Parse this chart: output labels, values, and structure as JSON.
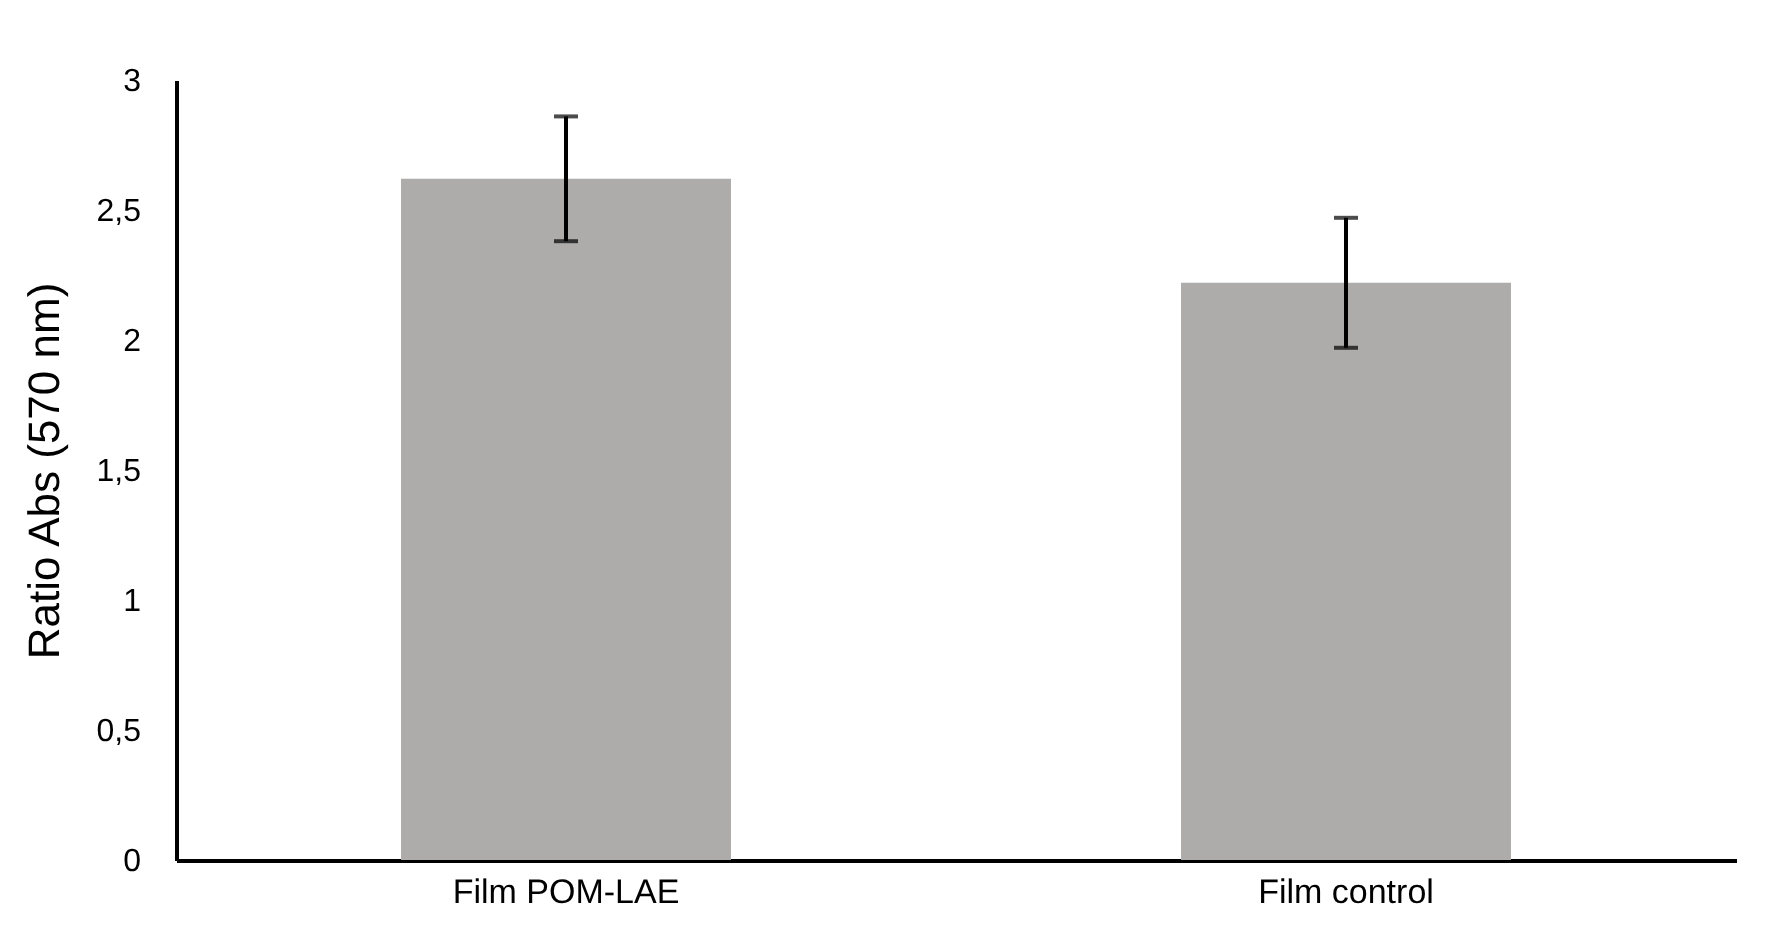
{
  "chart_data": {
    "type": "bar",
    "ylabel": "Ratio Abs (570 nm)",
    "categories": [
      "Film POM-LAE",
      "Film control"
    ],
    "values": [
      2.62,
      2.22
    ],
    "errors": [
      0.24,
      0.25
    ],
    "color": "#aeabab",
    "ylim": [
      0,
      3
    ],
    "yticks": [
      0,
      {
        "value": 0.5,
        "label": "0,5"
      },
      1,
      {
        "value": 1.5,
        "label": "1,5"
      },
      2,
      {
        "value": 2.5,
        "label": "2,5"
      },
      3
    ],
    "grid": false
  }
}
